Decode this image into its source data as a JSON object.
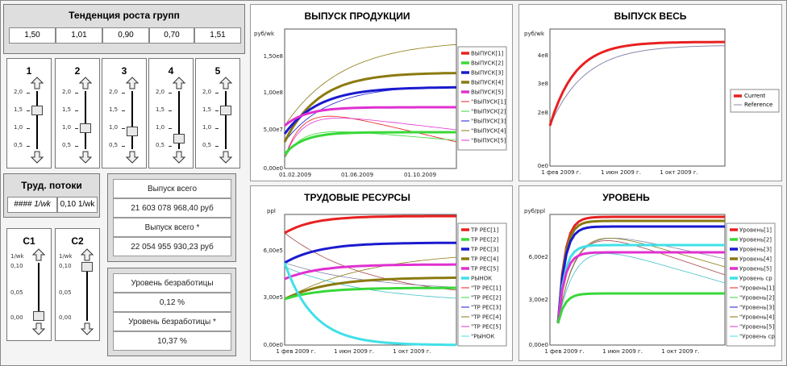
{
  "growth": {
    "title": "Тенденция роста групп",
    "values": [
      "1,50",
      "1,01",
      "0,90",
      "0,70",
      "1,51"
    ]
  },
  "sliders": [
    {
      "label": "1",
      "value": 1.5
    },
    {
      "label": "2",
      "value": 1.01
    },
    {
      "label": "3",
      "value": 0.9
    },
    {
      "label": "4",
      "value": 0.7
    },
    {
      "label": "5",
      "value": 1.51
    }
  ],
  "slider_ticks": [
    "2,0",
    "1,5",
    "1,0",
    "0,5"
  ],
  "labor": {
    "title": "Труд. потоки",
    "value1": "#### 1/wk",
    "value2": "0,10 1/wk"
  },
  "c_sliders": [
    {
      "label": "C1",
      "unit": "1/wk",
      "value": 0.005
    },
    {
      "label": "C2",
      "unit": "1/wk",
      "value": 0.1
    }
  ],
  "c_ticks": [
    "0,10",
    "0,05",
    "0,00"
  ],
  "output_box": {
    "label1": "Выпуск всего",
    "value1": "21 603 078 968,40 руб",
    "label2": "Выпуск всего  *",
    "value2": "22 054 955 930,23 руб"
  },
  "unemployment_box": {
    "label1": "Уровень безработицы",
    "value1": "0,12 %",
    "label2": "Уровень безработицы  *",
    "value2": "10,37 %"
  },
  "colors": {
    "s1": "#e82020",
    "s2": "#38d838",
    "s3": "#1a1ad0",
    "s4": "#8a7a10",
    "s5": "#e030d0",
    "s6": "#40e0e8"
  },
  "chart_data": [
    {
      "type": "line",
      "title": "ВЫПУСК ПРОДУКЦИИ",
      "ylabel": "руб/wk",
      "y_ticks": [
        "0,00e0",
        "5,00e7",
        "1,00e8",
        "1,50e8"
      ],
      "x_ticks": [
        "01.02.2009",
        "01.06.2009",
        "01.10.2009"
      ],
      "ylim": [
        0,
        175000000
      ],
      "series": [
        {
          "name": "ВЫПУСК[1]",
          "start": 10000000,
          "end": 180000000
        },
        {
          "name": "ВЫПУСК[2]",
          "start": 20000000,
          "end": 45000000
        },
        {
          "name": "ВЫПУСК[3]",
          "start": 30000000,
          "end": 110000000
        },
        {
          "name": "ВЫПУСК[4]",
          "start": 20000000,
          "end": 135000000
        },
        {
          "name": "ВЫПУСК[5]",
          "start": 50000000,
          "end": 82000000
        }
      ],
      "legend": [
        "ВЫПУСК[1]",
        "ВЫПУСК[2]",
        "ВЫПУСК[3]",
        "ВЫПУСК[4]",
        "ВЫПУСК[5]",
        "\"ВЫПУСК[1]",
        "\"ВЫПУСК[2]",
        "\"ВЫПУСК[3]",
        "\"ВЫПУСК[4]",
        "\"ВЫПУСК[5]"
      ]
    },
    {
      "type": "line",
      "title": "ВЫПУСК ВЕСЬ",
      "ylabel": "руб/wk",
      "y_ticks": [
        "0e0",
        "2e8",
        "3e8",
        "4e8"
      ],
      "x_ticks": [
        "1 фев 2009 г.",
        "1 июн 2009 г.",
        "1 окт 2009 г."
      ],
      "series": [
        {
          "name": "Current",
          "start": 150000000,
          "end": 470000000
        },
        {
          "name": "Reference",
          "start": 150000000,
          "end": 460000000
        }
      ],
      "legend": [
        "Current",
        "Reference"
      ]
    },
    {
      "type": "line",
      "title": "ТРУДОВЫЕ РЕСУРСЫ",
      "ylabel": "ppl",
      "y_ticks": [
        "0,00e0",
        "3,00e5",
        "6,00e5"
      ],
      "x_ticks": [
        "1 фев 2009 г.",
        "1 июн 2009 г.",
        "1 окт 2009 г."
      ],
      "legend": [
        "ТР РЕС[1]",
        "ТР РЕС[2]",
        "ТР РЕС[3]",
        "ТР РЕС[4]",
        "ТР РЕС[5]",
        "РЫНОК",
        "\"ТР РЕС[1]",
        "\"ТР РЕС[2]",
        "\"ТР РЕС[3]",
        "\"ТР РЕС[4]",
        "\"ТР РЕС[5]",
        "\"РЫНОК"
      ]
    },
    {
      "type": "line",
      "title": "УРОВЕНЬ",
      "ylabel": "руб/ppl",
      "y_ticks": [
        "0,00e0",
        "3,00e2",
        "6,00e2"
      ],
      "x_ticks": [
        "1 фев 2009 г.",
        "1 июн 2009 г.",
        "1 окт 2009 г."
      ],
      "legend": [
        "Уровень[1]",
        "Уровень[2]",
        "Уровень[3]",
        "Уровень[4]",
        "Уровень[5]",
        "Уровень ср",
        "\"Уровень[1]",
        "\"Уровень[2]",
        "\"Уровень[3]",
        "\"Уровень[4]",
        "\"Уровень[5]",
        "\"Уровень ср"
      ]
    }
  ]
}
